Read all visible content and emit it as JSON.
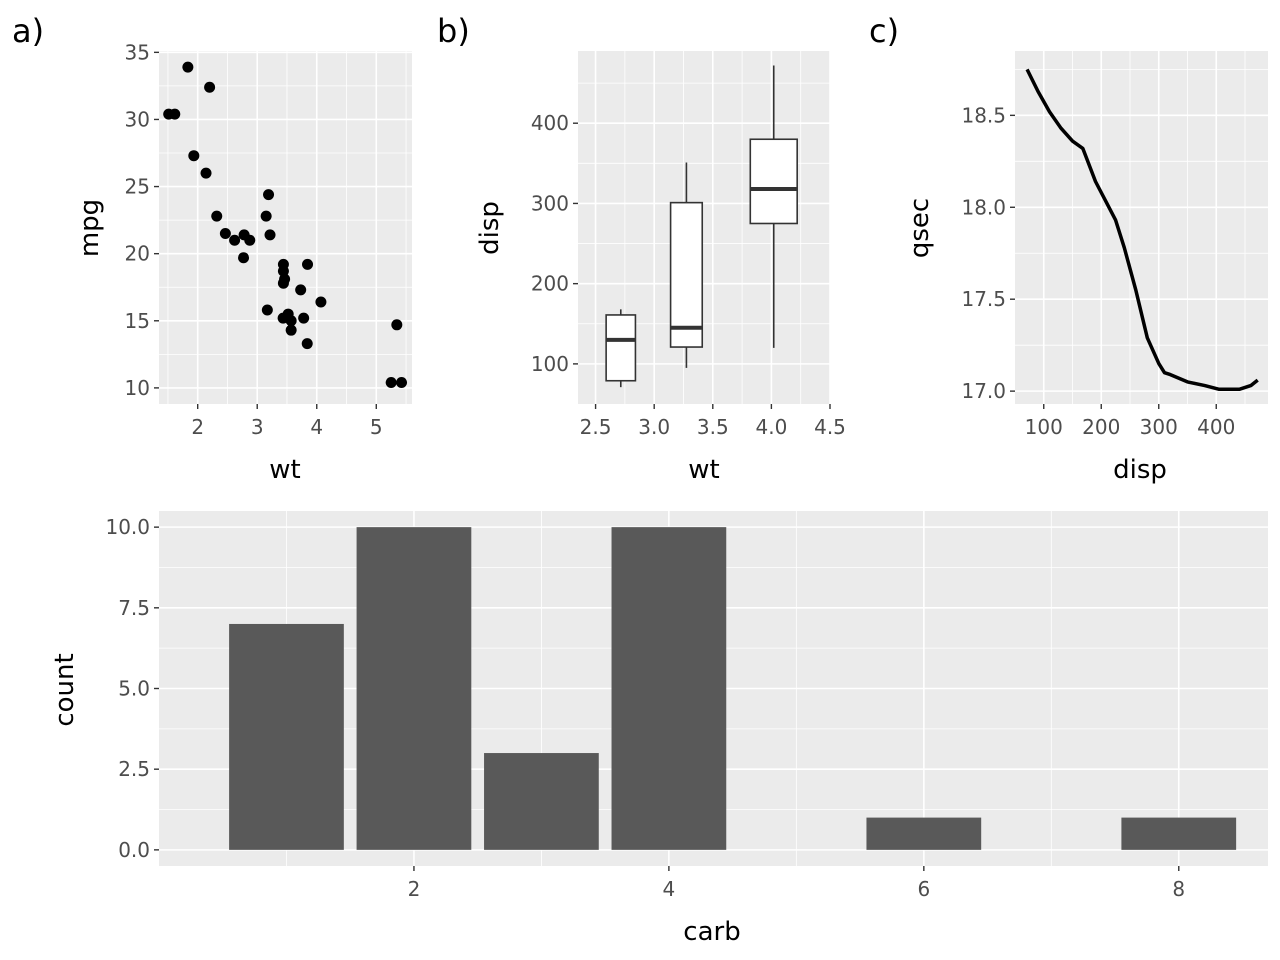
{
  "chart_data": [
    {
      "tag": "a)",
      "type": "scatter",
      "xlabel": "wt",
      "ylabel": "mpg",
      "xlim": [
        1.35,
        5.6
      ],
      "ylim": [
        8.8,
        35.1
      ],
      "xticks": [
        2,
        3,
        4,
        5
      ],
      "yticks": [
        10,
        15,
        20,
        25,
        30,
        35
      ],
      "grid": true,
      "points": [
        [
          2.62,
          21.0
        ],
        [
          2.875,
          21.0
        ],
        [
          2.32,
          22.8
        ],
        [
          3.215,
          21.4
        ],
        [
          3.44,
          18.7
        ],
        [
          3.46,
          18.1
        ],
        [
          3.57,
          14.3
        ],
        [
          3.19,
          24.4
        ],
        [
          3.15,
          22.8
        ],
        [
          3.44,
          19.2
        ],
        [
          3.44,
          17.8
        ],
        [
          4.07,
          16.4
        ],
        [
          3.73,
          17.3
        ],
        [
          3.78,
          15.2
        ],
        [
          5.25,
          10.4
        ],
        [
          5.424,
          10.4
        ],
        [
          5.345,
          14.7
        ],
        [
          2.2,
          32.4
        ],
        [
          1.615,
          30.4
        ],
        [
          1.835,
          33.9
        ],
        [
          2.465,
          21.5
        ],
        [
          3.52,
          15.5
        ],
        [
          3.435,
          15.2
        ],
        [
          3.84,
          13.3
        ],
        [
          3.845,
          19.2
        ],
        [
          1.935,
          27.3
        ],
        [
          2.14,
          26.0
        ],
        [
          1.513,
          30.4
        ],
        [
          3.17,
          15.8
        ],
        [
          2.77,
          19.7
        ],
        [
          3.57,
          15.0
        ],
        [
          2.78,
          21.4
        ]
      ]
    },
    {
      "tag": "b)",
      "type": "boxplot",
      "xlabel": "wt",
      "ylabel": "disp",
      "xlim": [
        2.35,
        4.5
      ],
      "ylim": [
        50,
        490
      ],
      "xticks": [
        "2.5",
        "3.0",
        "3.5",
        "4.0",
        "4.5"
      ],
      "yticks": [
        100,
        200,
        300,
        400
      ],
      "grid": true,
      "boxes": [
        {
          "x": 2.715,
          "width": 0.25,
          "whisker_low": 71,
          "q1": 79,
          "median": 130,
          "q3": 161,
          "whisker_high": 168
        },
        {
          "x": 3.275,
          "width": 0.27,
          "whisker_low": 95,
          "q1": 121,
          "median": 145,
          "q3": 301,
          "whisker_high": 351
        },
        {
          "x": 4.02,
          "width": 0.4,
          "whisker_low": 120,
          "q1": 275,
          "median": 318,
          "q3": 380,
          "whisker_high": 472
        }
      ]
    },
    {
      "tag": "c)",
      "type": "line",
      "xlabel": "disp",
      "ylabel": "qsec",
      "xlim": [
        50,
        490
      ],
      "ylim": [
        16.93,
        18.85
      ],
      "xticks": [
        100,
        200,
        300,
        400
      ],
      "yticks": [
        "17.0",
        "17.5",
        "18.0",
        "18.5"
      ],
      "grid": true,
      "x": [
        71.1,
        90,
        110,
        130,
        150,
        168,
        190,
        210,
        225,
        240,
        260,
        280,
        300,
        310,
        320,
        350,
        380,
        405,
        440,
        460,
        472
      ],
      "y": [
        18.75,
        18.63,
        18.52,
        18.43,
        18.36,
        18.32,
        18.14,
        18.02,
        17.93,
        17.78,
        17.55,
        17.29,
        17.15,
        17.1,
        17.09,
        17.05,
        17.03,
        17.01,
        17.01,
        17.03,
        17.06
      ]
    },
    {
      "tag": "",
      "type": "bar",
      "xlabel": "carb",
      "ylabel": "count",
      "xlim": [
        0.0,
        8.7
      ],
      "ylim": [
        -0.5,
        10.5
      ],
      "xticks": [
        2,
        4,
        6,
        8
      ],
      "yticks": [
        "0.0",
        "2.5",
        "5.0",
        "7.5",
        "10.0"
      ],
      "grid": true,
      "categories": [
        1,
        2,
        3,
        4,
        6,
        8
      ],
      "values": [
        7,
        10,
        3,
        10,
        1,
        1
      ],
      "bar_color": "#595959"
    }
  ]
}
